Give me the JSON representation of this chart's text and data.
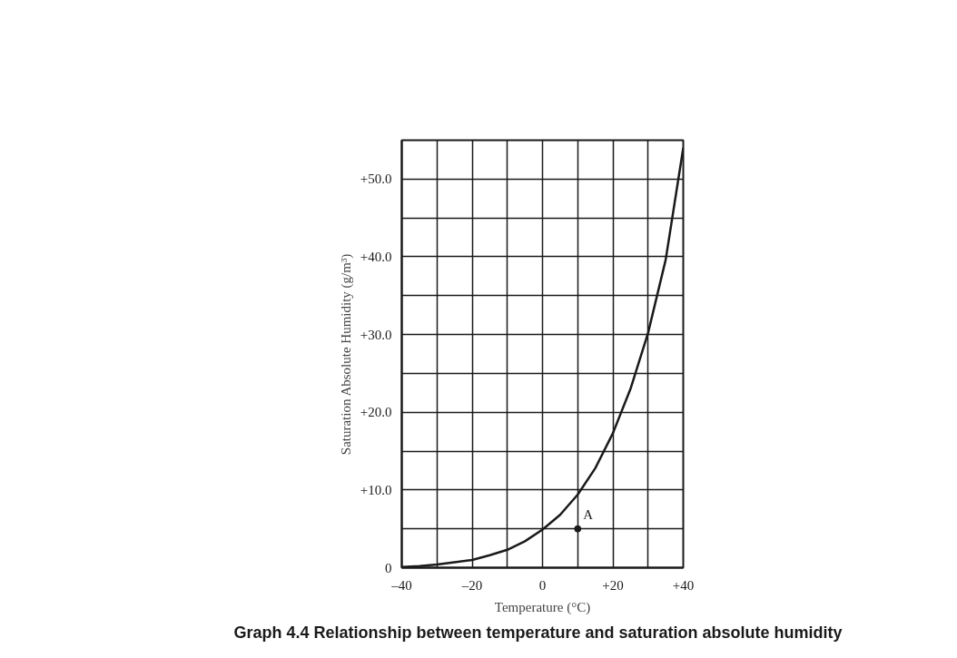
{
  "chart_data": {
    "type": "line",
    "title": "Graph 4.4   Relationship between temperature and saturation absolute humidity",
    "xlabel": "Temperature (°C)",
    "ylabel": "Saturation Absolute Humidity (g/m³)",
    "series": [
      {
        "color": "#1a1a1a",
        "x": [
          -40,
          -35,
          -30,
          -25,
          -20,
          -15,
          -10,
          -5,
          0,
          5,
          10,
          15,
          20,
          25,
          30,
          35,
          40
        ],
        "values": [
          0.1,
          0.2,
          0.4,
          0.7,
          1.0,
          1.6,
          2.3,
          3.4,
          4.9,
          6.8,
          9.4,
          12.8,
          17.3,
          23.0,
          30.2,
          39.6,
          54.0
        ]
      },
      {
        "type": "scatter",
        "color": "#1a1a1a",
        "marker": "circle",
        "x": [
          10
        ],
        "values": [
          5
        ]
      }
    ],
    "annotations": [
      {
        "text": "A",
        "x": 10,
        "y": 5
      }
    ],
    "xlim": [
      -40,
      40
    ],
    "ylim": [
      0,
      55
    ],
    "xticks": [
      {
        "value": -40,
        "label": "–40"
      },
      {
        "value": -30,
        "label": null
      },
      {
        "value": -20,
        "label": "–20"
      },
      {
        "value": -10,
        "label": null
      },
      0,
      {
        "value": 10,
        "label": null
      },
      {
        "value": 20,
        "label": "+20"
      },
      {
        "value": 30,
        "label": null
      },
      {
        "value": 40,
        "label": "+40"
      }
    ],
    "yticks": [
      0,
      {
        "value": 5,
        "label": null
      },
      {
        "value": 10,
        "label": "+10.0"
      },
      {
        "value": 15,
        "label": null
      },
      {
        "value": 20,
        "label": "+20.0"
      },
      {
        "value": 25,
        "label": null
      },
      {
        "value": 30,
        "label": "+30.0"
      },
      {
        "value": 35,
        "label": null
      },
      {
        "value": 40,
        "label": "+40.0"
      },
      {
        "value": 45,
        "label": null
      },
      {
        "value": 50,
        "label": "+50.0"
      }
    ],
    "grid": true,
    "marker": "none",
    "line_style": "solid"
  }
}
